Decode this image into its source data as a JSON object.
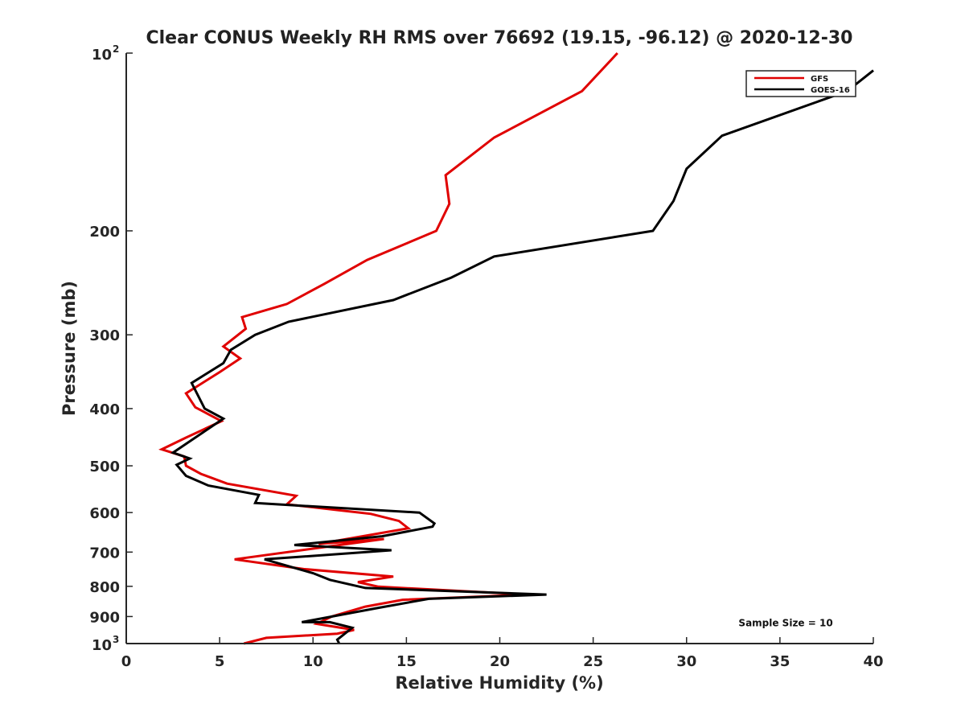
{
  "chart_data": {
    "type": "line",
    "title": "Clear CONUS Weekly RH RMS over 76692 (19.15, -96.12) @ 2020-12-30",
    "xlabel": "Relative Humidity (%)",
    "ylabel": "Pressure (mb)",
    "xlim": [
      0,
      40
    ],
    "ylim": [
      1000,
      100
    ],
    "yscale": "log",
    "x_ticks": [
      0,
      5,
      10,
      15,
      20,
      25,
      30,
      35,
      40
    ],
    "x_tick_labels": [
      "0",
      "5",
      "10",
      "15",
      "20",
      "25",
      "30",
      "35",
      "40"
    ],
    "y_ticks": [
      {
        "value": 100,
        "base": "10",
        "sup": "2"
      },
      {
        "value": 200,
        "base": "200",
        "sup": ""
      },
      {
        "value": 300,
        "base": "300",
        "sup": ""
      },
      {
        "value": 400,
        "base": "400",
        "sup": ""
      },
      {
        "value": 500,
        "base": "500",
        "sup": ""
      },
      {
        "value": 600,
        "base": "600",
        "sup": ""
      },
      {
        "value": 700,
        "base": "700",
        "sup": ""
      },
      {
        "value": 800,
        "base": "800",
        "sup": ""
      },
      {
        "value": 900,
        "base": "900",
        "sup": ""
      },
      {
        "value": 1000,
        "base": "10",
        "sup": "3"
      }
    ],
    "legend_position": "top-right",
    "series": [
      {
        "name": "GFS",
        "color": "#e00000",
        "points": [
          [
            26.3,
            100
          ],
          [
            24.4,
            116
          ],
          [
            19.7,
            139
          ],
          [
            17.1,
            161
          ],
          [
            17.3,
            180
          ],
          [
            16.6,
            200
          ],
          [
            12.9,
            224
          ],
          [
            10.6,
            246
          ],
          [
            8.6,
            266
          ],
          [
            6.2,
            280
          ],
          [
            6.4,
            293
          ],
          [
            5.2,
            314
          ],
          [
            6.1,
            329
          ],
          [
            5.0,
            347
          ],
          [
            3.2,
            377
          ],
          [
            3.7,
            398
          ],
          [
            5.1,
            420
          ],
          [
            3.2,
            448
          ],
          [
            1.9,
            469
          ],
          [
            3.1,
            482
          ],
          [
            3.2,
            500
          ],
          [
            4.0,
            516
          ],
          [
            5.4,
            536
          ],
          [
            9.1,
            562
          ],
          [
            8.6,
            581
          ],
          [
            13.1,
            603
          ],
          [
            14.6,
            620
          ],
          [
            15.1,
            638
          ],
          [
            10.3,
            678
          ],
          [
            13.8,
            665
          ],
          [
            5.8,
            720
          ],
          [
            9.5,
            748
          ],
          [
            14.3,
            770
          ],
          [
            12.4,
            787
          ],
          [
            13.5,
            801
          ],
          [
            21.5,
            826
          ],
          [
            14.8,
            843
          ],
          [
            12.8,
            866
          ],
          [
            11.0,
            900
          ],
          [
            10.2,
            926
          ],
          [
            12.2,
            948
          ],
          [
            11.3,
            962
          ],
          [
            7.5,
            978
          ],
          [
            6.3,
            1000
          ]
        ]
      },
      {
        "name": "GOES-16",
        "color": "#000000",
        "points": [
          [
            40.0,
            107
          ],
          [
            38.6,
            116
          ],
          [
            31.9,
            138
          ],
          [
            30.0,
            157
          ],
          [
            29.3,
            178
          ],
          [
            28.2,
            200
          ],
          [
            19.7,
            221
          ],
          [
            17.4,
            240
          ],
          [
            14.3,
            262
          ],
          [
            8.7,
            285
          ],
          [
            6.9,
            300
          ],
          [
            5.6,
            318
          ],
          [
            5.2,
            335
          ],
          [
            3.5,
            362
          ],
          [
            4.2,
            400
          ],
          [
            5.2,
            416
          ],
          [
            3.6,
            450
          ],
          [
            2.5,
            475
          ],
          [
            3.4,
            486
          ],
          [
            2.7,
            498
          ],
          [
            3.2,
            520
          ],
          [
            4.4,
            540
          ],
          [
            7.1,
            560
          ],
          [
            6.9,
            578
          ],
          [
            15.7,
            600
          ],
          [
            16.5,
            626
          ],
          [
            16.4,
            634
          ],
          [
            13.7,
            658
          ],
          [
            9.0,
            681
          ],
          [
            14.2,
            695
          ],
          [
            7.4,
            720
          ],
          [
            10.0,
            760
          ],
          [
            10.9,
            780
          ],
          [
            12.8,
            805
          ],
          [
            22.5,
            826
          ],
          [
            16.2,
            840
          ],
          [
            13.5,
            870
          ],
          [
            9.4,
            920
          ],
          [
            10.9,
            920
          ],
          [
            12.1,
            940
          ],
          [
            11.3,
            985
          ],
          [
            11.4,
            1000
          ]
        ]
      }
    ],
    "annotations": [
      {
        "text": "Sample Size = 10",
        "x": 33.0,
        "y": 920
      }
    ]
  }
}
